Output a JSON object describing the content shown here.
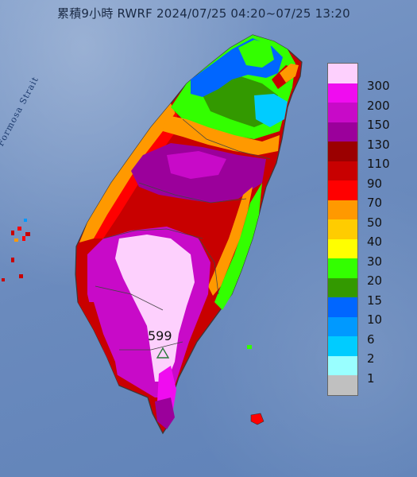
{
  "title": "累積9小時 RWRF 2024/07/25 04:20~07/25 13:20",
  "sea_label": "Formosa Strait",
  "max_marker": {
    "value": "599",
    "icon": "triangle-marker-icon"
  },
  "legend": {
    "labels": [
      "300",
      "200",
      "150",
      "130",
      "110",
      "90",
      "70",
      "50",
      "40",
      "30",
      "20",
      "15",
      "10",
      "6",
      "2",
      "1"
    ],
    "colors": [
      "#fdd0fd",
      "#f00cf0",
      "#c80ac8",
      "#9b009b",
      "#9b0000",
      "#c80000",
      "#ff0000",
      "#ff9900",
      "#ffcc00",
      "#ffff00",
      "#33ff00",
      "#339900",
      "#0066ff",
      "#0099ff",
      "#00ccff",
      "#99ffff",
      "#c0c0c0"
    ]
  },
  "colors": {
    "sea": "#6a8abd",
    "title_text": "#1a2a44",
    "border": "#444444"
  }
}
